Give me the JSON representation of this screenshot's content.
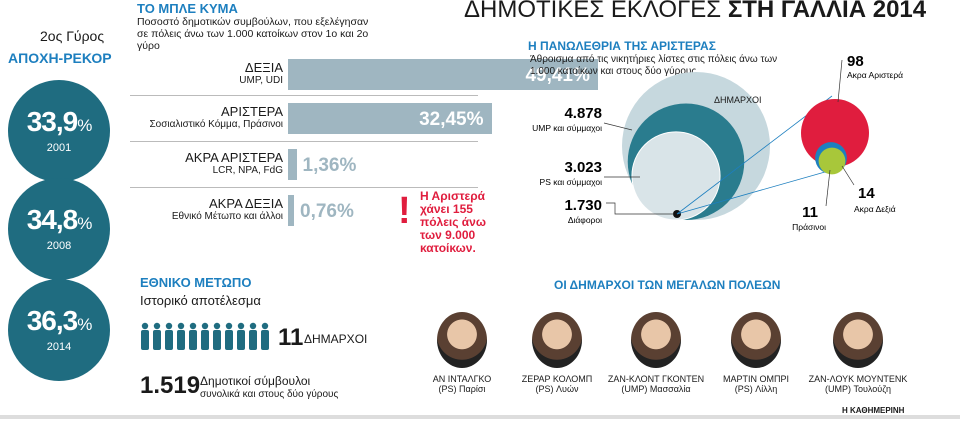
{
  "title": {
    "light": "ΔΗΜΟΤΙΚΕΣ ΕΚΛΟΓΕΣ",
    "bold": "ΣΤΗ ΓΑΛΛΙΑ 2014"
  },
  "turnout": {
    "title": "2ος Γύρος",
    "subtitle": "ΑΠΟΧΗ-ΡΕΚΟΡ",
    "unit": "%",
    "items": [
      {
        "value": "33,9",
        "year": "2001"
      },
      {
        "value": "34,8",
        "year": "2008"
      },
      {
        "value": "36,3",
        "year": "2014"
      }
    ]
  },
  "blue_wave": {
    "title": "ΤΟ ΜΠΛΕ ΚΥΜΑ",
    "description": "Ποσοστό δημοτικών συμβούλων, που εξελέγησαν σε πόλεις άνω των 1.000 κατοίκων στον 1ο και 2ο γύρο"
  },
  "alert": {
    "mark": "!",
    "text": "Η Αριστερά χάνει 155 πόλεις άνω των 9.000 κατοίκων."
  },
  "national_front": {
    "title": "ΕΘΝΙΚΟ ΜΕΤΩΠΟ",
    "subtitle": "Ιστορικό αποτέλεσμα",
    "mayors_count": "11",
    "mayors_label": "ΔΗΜΑΡΧΟΙ",
    "councillors_count": "1.519",
    "councillors_label": "Δημοτικοί σύμβουλοι",
    "councillors_sub": "συνολικά και στους δύο γύρους"
  },
  "left_wing": {
    "title": "Η ΠΑΝΩΛΕΘΡΙΑ ΤΗΣ ΑΡΙΣΤΕΡΑΣ",
    "description": "Άθροισμα από τις νικητήριες λίστες στις πόλεις άνω των 1.000 κατοίκων και στους δύο γύρους",
    "mayors_label": "ΔΗΜΑΡΧΟΙ"
  },
  "big_cities": {
    "title": "ΟΙ ΔΗΜΑΡΧΟΙ ΤΩΝ ΜΕΓΑΛΩΝ ΠΟΛΕΩΝ",
    "mayors": [
      {
        "name": "ΑΝ ΙΝΤΑΛΓΚΟ",
        "party": "(PS) Παρίσι"
      },
      {
        "name": "ΖΕΡΑΡ ΚΟΛΟΜΠ",
        "party": "(PS) Λυών"
      },
      {
        "name": "ΖΑΝ-ΚΛΟΝΤ ΓΚΟΝΤΕΝ",
        "party": "(UMP) Μασσαλία"
      },
      {
        "name": "ΜΑΡΤΙΝ ΟΜΠΡΙ",
        "party": "(PS) Λίλλη"
      },
      {
        "name": "ΖΑΝ-ΛΟΥΚ ΜΟΥΝΤΕΝΚ",
        "party": "(UMP) Τουλούζη"
      }
    ]
  },
  "source": "Η ΚΑΘΗΜΕΡΙΝΗ",
  "colors": {
    "accent": "#1d7fbf",
    "circle": "#1f6c80",
    "bar": "#9fb6c1",
    "red": "#e01d3e"
  },
  "chart_data": [
    {
      "type": "bar",
      "title": "ΤΟ ΜΠΛΕ ΚΥΜΑ",
      "categories": [
        "ΔΕΞΙΑ",
        "ΑΡΙΣΤΕΡΑ",
        "ΑΚΡΑ ΑΡΙΣΤΕΡΑ",
        "ΑΚΡΑ ΔΕΞΙΑ"
      ],
      "sublabels": [
        "UMP, UDI",
        "Σοσιαλιστικό Κόμμα, Πράσινοι",
        "LCR, NPA, FdG",
        "Εθνικό Μέτωπο και άλλοι"
      ],
      "values": [
        49.41,
        32.45,
        1.36,
        0.76
      ],
      "value_labels": [
        "49,41",
        "32,45",
        "1,36",
        "0,76"
      ],
      "unit": "%"
    },
    {
      "type": "bubble",
      "title": "Η ΠΑΝΩΛΕΘΡΙΑ ΤΗΣ ΑΡΙΣΤΕΡΑΣ",
      "groups": [
        {
          "name": "ΔΗΜΑΡΧΟΙ",
          "items": [
            {
              "label": "UMP και σύμμαχοι",
              "value": 4878,
              "display": "4.878",
              "color": "#c6d8de"
            },
            {
              "label": "PS και σύμμαχοι",
              "value": 3023,
              "display": "3.023",
              "color": "#2a7c8e"
            },
            {
              "label": "Διάφοροι",
              "value": 1730,
              "display": "1.730",
              "color": "#d9e4e8"
            }
          ]
        },
        {
          "name": "zoom",
          "items": [
            {
              "label": "Ακρα Αριστερά",
              "value": 98,
              "display": "98",
              "color": "#e01d3e"
            },
            {
              "label": "Ακρα Δεξιά",
              "value": 14,
              "display": "14",
              "color": "#1d7fbf"
            },
            {
              "label": "Πράσινοι",
              "value": 11,
              "display": "11",
              "color": "#a8c73a"
            }
          ]
        }
      ]
    }
  ]
}
